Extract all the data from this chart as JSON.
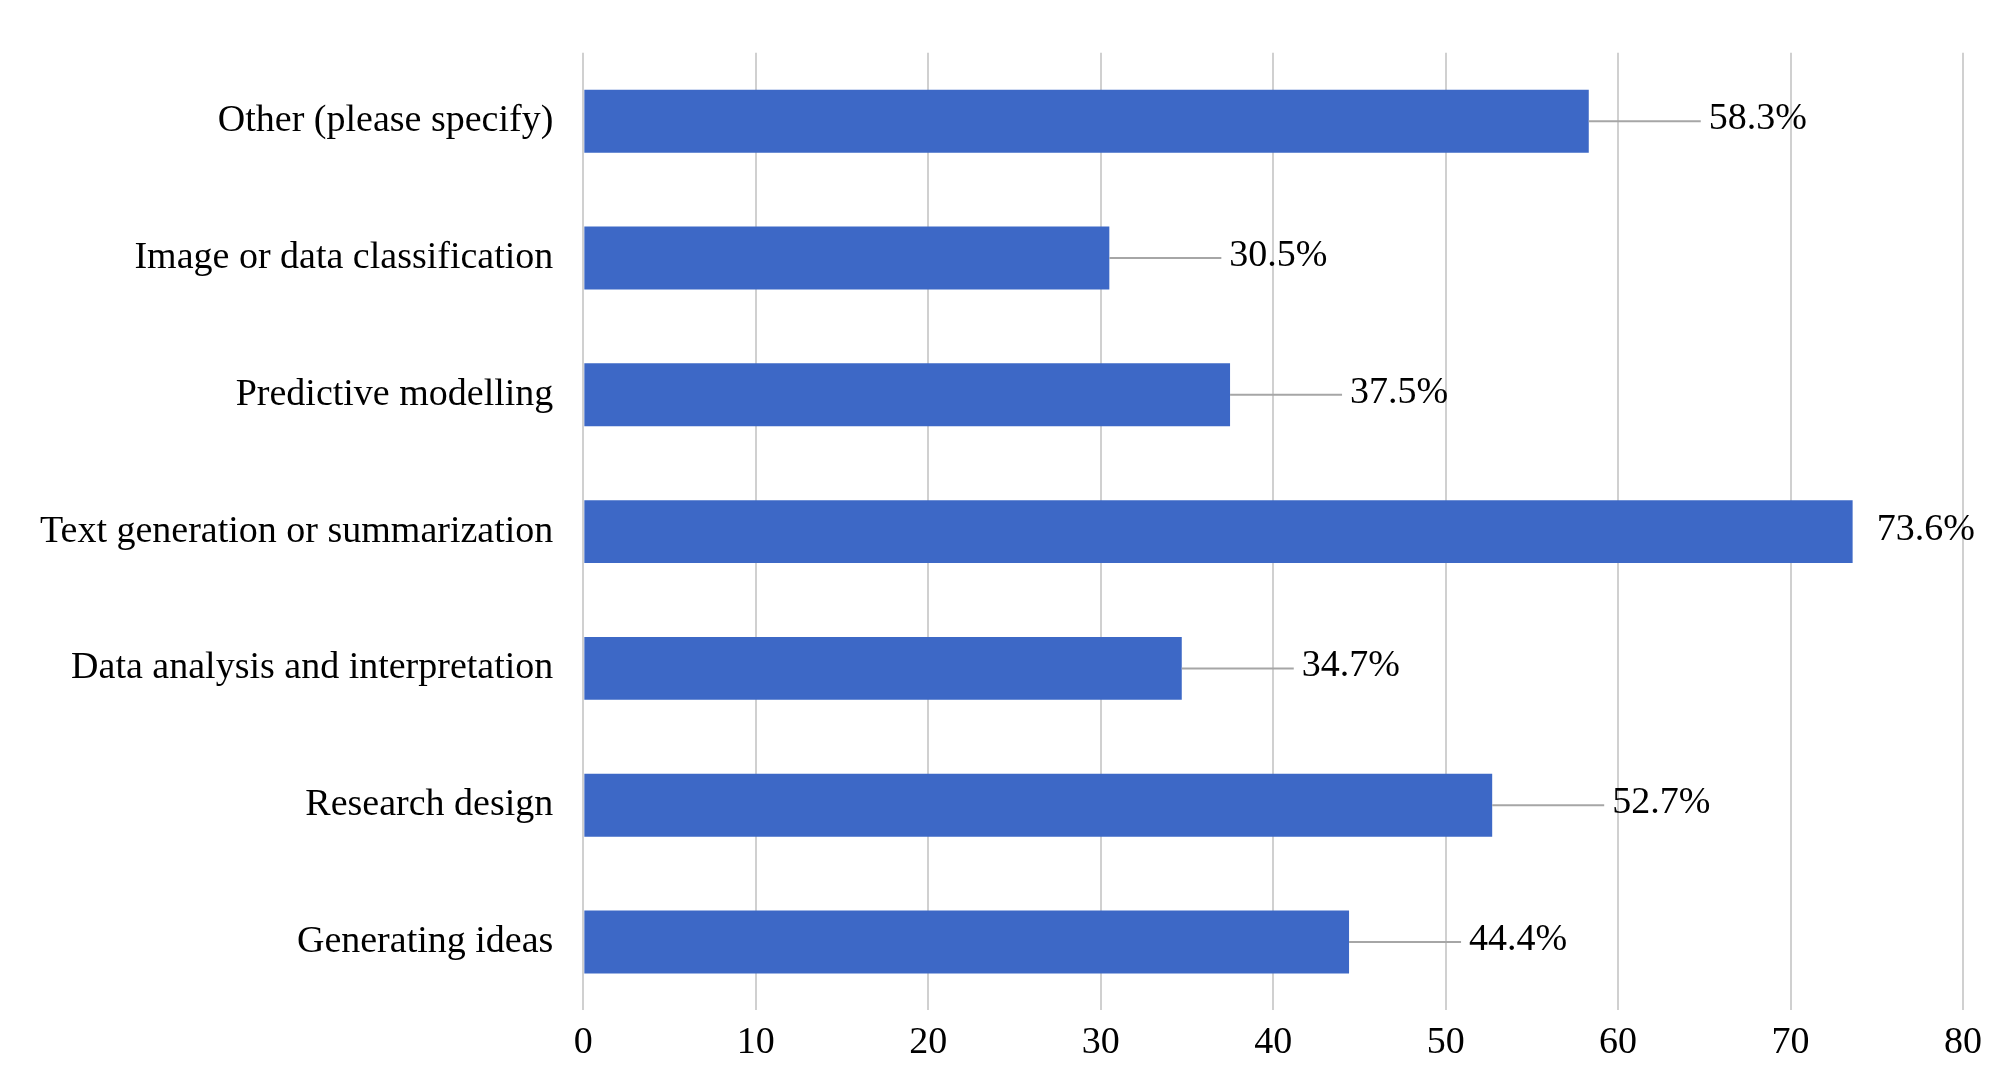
{
  "chart_data": {
    "type": "bar",
    "orientation": "horizontal",
    "categories": [
      "Other (please specify)",
      "Image or data classification",
      "Predictive modelling",
      "Text generation or summarization",
      "Data analysis and interpretation",
      "Research design",
      "Generating ideas"
    ],
    "values": [
      58.3,
      30.5,
      37.5,
      73.6,
      34.7,
      52.7,
      44.4
    ],
    "value_labels": [
      "58.3%",
      "30.5%",
      "37.5%",
      "73.6%",
      "34.7%",
      "52.7%",
      "44.4%"
    ],
    "color": "#3d68c6",
    "xlim": [
      0,
      80
    ],
    "xticks": [
      0,
      10,
      20,
      30,
      40,
      50,
      60,
      70,
      80
    ],
    "grid": "x",
    "legend": false
  }
}
